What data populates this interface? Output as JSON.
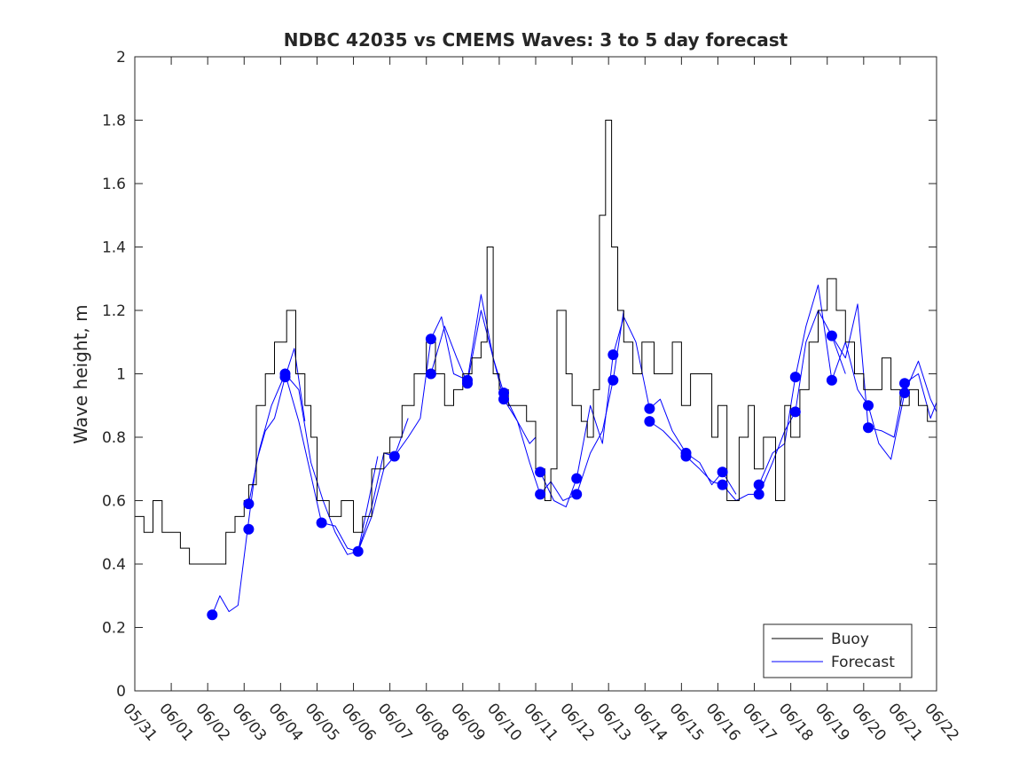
{
  "chart_data": {
    "type": "line",
    "title": "NDBC 42035 vs CMEMS Waves: 3 to 5 day forecast",
    "xlabel": "",
    "ylabel": "Wave height, m",
    "ylim": [
      0,
      2
    ],
    "yticks": [
      "0",
      "0.2",
      "0.4",
      "0.6",
      "0.8",
      "1",
      "1.2",
      "1.4",
      "1.6",
      "1.8",
      "2"
    ],
    "xlim": [
      "05/31",
      "06/22"
    ],
    "xticks": [
      "05/31",
      "06/01",
      "06/02",
      "06/03",
      "06/04",
      "06/05",
      "06/06",
      "06/07",
      "06/08",
      "06/09",
      "06/10",
      "06/11",
      "06/12",
      "06/13",
      "06/14",
      "06/15",
      "06/16",
      "06/17",
      "06/18",
      "06/19",
      "06/20",
      "06/21",
      "06/22"
    ],
    "grid": false,
    "legend": {
      "position": "bottom-right",
      "entries": [
        "Buoy",
        "Forecast"
      ]
    },
    "colors": {
      "buoy": "#000000",
      "forecast": "#0000ff"
    },
    "series": [
      {
        "name": "Buoy",
        "x": [
          "05/31",
          "05/31 06:00",
          "05/31 12:00",
          "05/31 18:00",
          "06/01 00:00",
          "06/01 06:00",
          "06/01 12:00",
          "06/02 00:00",
          "06/02 12:00",
          "06/02 18:00",
          "06/03 00:00",
          "06/03 03:00",
          "06/03 08:00",
          "06/03 14:00",
          "06/03 20:00",
          "06/04 00:00",
          "06/04 04:00",
          "06/04 10:00",
          "06/04 16:00",
          "06/04 20:00",
          "06/05 00:00",
          "06/05 08:00",
          "06/05 16:00",
          "06/06 00:00",
          "06/06 06:00",
          "06/06 12:00",
          "06/06 16:00",
          "06/06 20:00",
          "06/07 00:00",
          "06/07 08:00",
          "06/07 16:00",
          "06/08 00:00",
          "06/08 06:00",
          "06/08 12:00",
          "06/08 18:00",
          "06/09 00:00",
          "06/09 06:00",
          "06/09 12:00",
          "06/09 16:00",
          "06/09 20:00",
          "06/10 00:00",
          "06/10 06:00",
          "06/10 12:00",
          "06/10 18:00",
          "06/11 00:00",
          "06/11 06:00",
          "06/11 10:00",
          "06/11 14:00",
          "06/11 20:00",
          "06/12 00:00",
          "06/12 06:00",
          "06/12 10:00",
          "06/12 14:00",
          "06/12 18:00",
          "06/12 22:00",
          "06/13 02:00",
          "06/13 06:00",
          "06/13 10:00",
          "06/13 16:00",
          "06/13 22:00",
          "06/14 06:00",
          "06/14 12:00",
          "06/14 18:00",
          "06/15 00:00",
          "06/15 06:00",
          "06/15 14:00",
          "06/15 20:00",
          "06/16 00:00",
          "06/16 06:00",
          "06/16 14:00",
          "06/16 20:00",
          "06/17 00:00",
          "06/17 06:00",
          "06/17 14:00",
          "06/17 20:00",
          "06/18 00:00",
          "06/18 06:00",
          "06/18 12:00",
          "06/18 18:00",
          "06/19 00:00",
          "06/19 06:00",
          "06/19 12:00",
          "06/19 18:00",
          "06/20 00:00",
          "06/20 06:00",
          "06/20 12:00",
          "06/20 18:00",
          "06/21 00:00",
          "06/21 06:00",
          "06/21 12:00",
          "06/21 18:00"
        ],
        "values": [
          0.55,
          0.5,
          0.6,
          0.5,
          0.5,
          0.45,
          0.4,
          0.4,
          0.5,
          0.55,
          0.6,
          0.65,
          0.9,
          1.0,
          1.1,
          1.1,
          1.2,
          1.0,
          0.9,
          0.8,
          0.6,
          0.55,
          0.6,
          0.5,
          0.55,
          0.7,
          0.7,
          0.75,
          0.8,
          0.9,
          1.0,
          1.1,
          1.0,
          0.9,
          0.95,
          1.0,
          1.05,
          1.1,
          1.4,
          1.0,
          0.95,
          0.9,
          0.9,
          0.85,
          0.7,
          0.6,
          0.7,
          1.2,
          1.0,
          0.9,
          0.85,
          0.8,
          0.95,
          1.5,
          1.8,
          1.4,
          1.2,
          1.1,
          1.0,
          1.1,
          1.0,
          1.0,
          1.1,
          0.9,
          1.0,
          1.0,
          0.8,
          0.9,
          0.6,
          0.8,
          0.9,
          0.7,
          0.8,
          0.6,
          0.9,
          0.8,
          0.95,
          1.1,
          1.2,
          1.3,
          1.2,
          1.1,
          1.0,
          0.95,
          0.95,
          1.05,
          0.95,
          0.9,
          0.95,
          0.9,
          0.85
        ]
      },
      {
        "name": "Forecast",
        "runs": [
          {
            "x": [
              "06/02 03:00",
              "06/02 08:00",
              "06/02 14:00",
              "06/02 20:00",
              "06/03 02:00",
              "06/03 08:00",
              "06/03 14:00",
              "06/03 20:00",
              "06/04 03:00",
              "06/04 09:00",
              "06/04 16:00"
            ],
            "values": [
              0.24,
              0.3,
              0.25,
              0.27,
              0.5,
              0.72,
              0.82,
              0.86,
              0.99,
              1.08,
              0.85
            ]
          },
          {
            "x": [
              "06/03 03:00",
              "06/03 10:00",
              "06/03 18:00",
              "06/04 03:00",
              "06/04 12:00",
              "06/04 20:00",
              "06/05 04:00",
              "06/05 12:00",
              "06/05 20:00",
              "06/06 03:00",
              "06/06 10:00",
              "06/06 16:00"
            ],
            "values": [
              0.59,
              0.76,
              0.9,
              1.0,
              0.95,
              0.72,
              0.6,
              0.5,
              0.43,
              0.44,
              0.6,
              0.74
            ]
          },
          {
            "x": [
              "06/04 03:00",
              "06/04 12:00",
              "06/04 20:00",
              "06/05 03:00",
              "06/05 12:00",
              "06/05 20:00",
              "06/06 03:00",
              "06/06 12:00",
              "06/06 20:00",
              "06/07 03:00",
              "06/07 12:00"
            ],
            "values": [
              1.0,
              0.85,
              0.68,
              0.53,
              0.52,
              0.45,
              0.44,
              0.55,
              0.7,
              0.74,
              0.86
            ]
          },
          {
            "x": [
              "06/06 03:00",
              "06/06 12:00",
              "06/06 20:00",
              "06/07 03:00",
              "06/07 12:00",
              "06/07 20:00",
              "06/08 03:00",
              "06/08 10:00",
              "06/08 18:00",
              "06/09 03:00",
              "06/09 12:00",
              "06/09 20:00",
              "06/10 03:00",
              "06/10 12:00",
              "06/10 20:00",
              "06/11 00:00"
            ],
            "values": [
              0.44,
              0.58,
              0.75,
              0.74,
              0.8,
              0.86,
              1.11,
              1.18,
              1.0,
              0.98,
              1.25,
              1.05,
              0.94,
              0.85,
              0.78,
              0.8
            ]
          },
          {
            "x": [
              "06/08 03:00",
              "06/08 12:00",
              "06/08 20:00",
              "06/09 03:00",
              "06/09 12:00",
              "06/09 20:00",
              "06/10 03:00",
              "06/10 12:00",
              "06/10 20:00",
              "06/11 03:00",
              "06/11 10:00",
              "06/11 18:00",
              "06/12 03:00",
              "06/12 12:00",
              "06/12 20:00",
              "06/13 03:00",
              "06/13 10:00"
            ],
            "values": [
              1.0,
              1.15,
              1.05,
              0.97,
              1.2,
              1.05,
              0.92,
              0.85,
              0.72,
              0.62,
              0.66,
              0.6,
              0.62,
              0.75,
              0.82,
              0.98,
              1.2
            ]
          },
          {
            "x": [
              "06/11 03:00",
              "06/11 12:00",
              "06/11 20:00",
              "06/12 03:00",
              "06/12 12:00",
              "06/12 20:00",
              "06/13 03:00",
              "06/13 10:00",
              "06/13 18:00",
              "06/14 03:00",
              "06/14 10:00",
              "06/14 18:00",
              "06/15 03:00",
              "06/15 12:00",
              "06/15 20:00",
              "06/16 03:00",
              "06/16 12:00"
            ],
            "values": [
              0.69,
              0.6,
              0.58,
              0.67,
              0.9,
              0.78,
              1.06,
              1.18,
              1.1,
              0.89,
              0.92,
              0.82,
              0.75,
              0.72,
              0.65,
              0.69,
              0.62
            ]
          },
          {
            "x": [
              "06/14 03:00",
              "06/14 12:00",
              "06/14 20:00",
              "06/15 03:00",
              "06/15 12:00",
              "06/15 20:00",
              "06/16 03:00",
              "06/16 12:00",
              "06/16 20:00",
              "06/17 03:00",
              "06/17 12:00",
              "06/17 20:00",
              "06/18 03:00",
              "06/18 10:00",
              "06/18 18:00",
              "06/19 03:00",
              "06/19 12:00"
            ],
            "values": [
              0.85,
              0.82,
              0.78,
              0.74,
              0.7,
              0.66,
              0.65,
              0.6,
              0.62,
              0.62,
              0.72,
              0.82,
              0.88,
              1.1,
              1.2,
              1.12,
              1.0
            ]
          },
          {
            "x": [
              "06/17 03:00",
              "06/17 12:00",
              "06/17 20:00",
              "06/18 03:00",
              "06/18 10:00",
              "06/18 18:00",
              "06/19 03:00",
              "06/19 12:00",
              "06/19 20:00",
              "06/20 03:00",
              "06/20 10:00",
              "06/20 18:00",
              "06/21 03:00",
              "06/21 12:00",
              "06/21 20:00",
              "06/22 00:00"
            ],
            "values": [
              0.65,
              0.75,
              0.78,
              0.99,
              1.15,
              1.28,
              0.98,
              1.1,
              0.95,
              0.9,
              0.78,
              0.73,
              0.94,
              1.04,
              0.92,
              0.88
            ]
          },
          {
            "x": [
              "06/19 03:00",
              "06/19 12:00",
              "06/19 20:00",
              "06/20 03:00",
              "06/20 12:00",
              "06/20 20:00",
              "06/21 03:00",
              "06/21 12:00",
              "06/21 20:00",
              "06/22 00:00"
            ],
            "values": [
              1.12,
              1.05,
              1.22,
              0.83,
              0.82,
              0.8,
              0.97,
              1.0,
              0.86,
              0.91
            ]
          }
        ],
        "markers": {
          "x": [
            "06/02 03:00",
            "06/03 03:00",
            "06/03 03:00",
            "06/04 03:00",
            "06/04 03:00",
            "06/05 03:00",
            "06/06 03:00",
            "06/07 03:00",
            "06/08 03:00",
            "06/08 03:00",
            "06/09 03:00",
            "06/09 03:00",
            "06/10 03:00",
            "06/10 03:00",
            "06/11 03:00",
            "06/11 03:00",
            "06/12 03:00",
            "06/12 03:00",
            "06/13 03:00",
            "06/13 03:00",
            "06/14 03:00",
            "06/14 03:00",
            "06/15 03:00",
            "06/15 03:00",
            "06/16 03:00",
            "06/16 03:00",
            "06/17 03:00",
            "06/17 03:00",
            "06/18 03:00",
            "06/18 03:00",
            "06/19 03:00",
            "06/19 03:00",
            "06/20 03:00",
            "06/20 03:00",
            "06/21 03:00",
            "06/21 03:00"
          ],
          "values": [
            0.24,
            0.59,
            0.51,
            1.0,
            0.99,
            0.53,
            0.44,
            0.74,
            1.11,
            1.0,
            0.98,
            0.97,
            0.94,
            0.92,
            0.69,
            0.62,
            0.67,
            0.62,
            1.06,
            0.98,
            0.89,
            0.85,
            0.75,
            0.74,
            0.69,
            0.65,
            0.65,
            0.62,
            0.99,
            0.88,
            1.12,
            0.98,
            0.9,
            0.83,
            0.97,
            0.94
          ]
        }
      }
    ]
  }
}
